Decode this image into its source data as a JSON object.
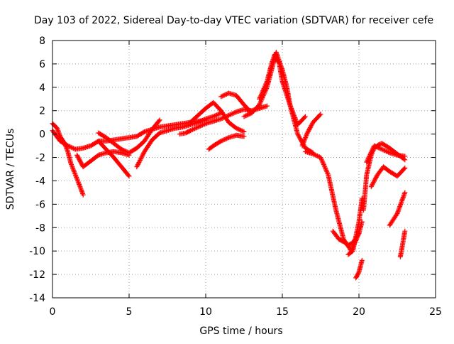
{
  "chart_data": {
    "type": "scatter",
    "title": "Day 103 of 2022, Sidereal Day-to-day VTEC variation (SDTVAR) for receiver cefe",
    "xlabel": "GPS time / hours",
    "ylabel": "SDTVAR / TECUs",
    "xlim": [
      0,
      25
    ],
    "ylim": [
      -14,
      8
    ],
    "xticks": [
      0,
      5,
      10,
      15,
      20,
      25
    ],
    "yticks": [
      -14,
      -12,
      -10,
      -8,
      -6,
      -4,
      -2,
      0,
      2,
      4,
      6,
      8
    ],
    "grid": true,
    "marker": "+",
    "marker_color": "#ff0000",
    "series": [
      {
        "name": "trace-1",
        "x": [
          0.0,
          0.3,
          0.5,
          0.8,
          1.0,
          1.2,
          1.5,
          1.8,
          2.0
        ],
        "y": [
          0.9,
          0.5,
          -0.2,
          -0.8,
          -1.5,
          -2.5,
          -3.5,
          -4.5,
          -5.2
        ]
      },
      {
        "name": "trace-2",
        "x": [
          0.0,
          0.5,
          1.0,
          1.5,
          2.0,
          2.5,
          3.0,
          3.5,
          4.0,
          4.5,
          5.0,
          5.5,
          6.0,
          6.5,
          7.0,
          7.5,
          8.0,
          8.5,
          9.0,
          9.5,
          10.0
        ],
        "y": [
          0.3,
          -0.6,
          -1.0,
          -1.3,
          -1.2,
          -1.0,
          -0.6,
          -0.6,
          -0.5,
          -0.4,
          -0.3,
          -0.2,
          0.2,
          0.4,
          0.6,
          0.7,
          0.8,
          0.9,
          1.0,
          1.1,
          1.2
        ]
      },
      {
        "name": "trace-3",
        "x": [
          1.6,
          2.0,
          2.5,
          3.0,
          3.5,
          4.0,
          4.5,
          5.0
        ],
        "y": [
          -1.8,
          -2.8,
          -2.3,
          -1.8,
          -1.6,
          -1.5,
          -1.6,
          -1.8
        ]
      },
      {
        "name": "trace-4",
        "x": [
          3.0,
          3.5,
          4.0,
          4.5,
          5.0
        ],
        "y": [
          -0.6,
          -1.3,
          -2.0,
          -2.8,
          -3.6
        ]
      },
      {
        "name": "trace-5",
        "x": [
          3.0,
          3.5,
          4.0,
          4.5,
          5.0,
          5.5,
          6.0,
          6.5,
          7.0
        ],
        "y": [
          0.1,
          -0.3,
          -0.8,
          -1.3,
          -1.6,
          -1.2,
          -0.6,
          0.4,
          1.2
        ]
      },
      {
        "name": "trace-6",
        "x": [
          5.5,
          6.0,
          6.5,
          7.0,
          7.5,
          8.0,
          8.5,
          9.0,
          9.5,
          10.0,
          10.5,
          11.0
        ],
        "y": [
          -2.8,
          -1.5,
          -0.5,
          0.1,
          0.3,
          0.5,
          0.6,
          0.8,
          1.0,
          1.3,
          1.5,
          1.8
        ]
      },
      {
        "name": "trace-7",
        "x": [
          8.3,
          8.7,
          9.0,
          9.5,
          10.0,
          10.5,
          11.0,
          11.5,
          12.0,
          12.5,
          13.0,
          13.5,
          14.0
        ],
        "y": [
          0.0,
          0.1,
          0.3,
          0.6,
          0.9,
          1.1,
          1.3,
          1.6,
          1.9,
          2.1,
          2.0,
          2.2,
          2.4
        ]
      },
      {
        "name": "trace-8",
        "x": [
          9.0,
          9.5,
          10.0,
          10.5,
          11.0,
          11.5,
          12.0,
          12.5
        ],
        "y": [
          1.0,
          1.6,
          2.2,
          2.7,
          2.0,
          1.0,
          0.5,
          0.2
        ]
      },
      {
        "name": "trace-9",
        "x": [
          10.2,
          10.5,
          11.0,
          11.5,
          12.0,
          12.5
        ],
        "y": [
          -1.3,
          -1.0,
          -0.6,
          -0.3,
          -0.1,
          -0.2
        ]
      },
      {
        "name": "trace-10",
        "x": [
          11.0,
          11.5,
          12.0,
          12.5,
          13.0
        ],
        "y": [
          3.2,
          3.5,
          3.3,
          2.5,
          1.8
        ]
      },
      {
        "name": "trace-11",
        "x": [
          12.5,
          13.0,
          13.5,
          14.0,
          14.3,
          14.6,
          15.0,
          15.3,
          15.5,
          16.0,
          16.5,
          17.0
        ],
        "y": [
          1.5,
          1.8,
          2.5,
          4.0,
          5.5,
          7.0,
          5.5,
          4.0,
          2.5,
          0.0,
          -1.2,
          -1.6
        ]
      },
      {
        "name": "trace-12",
        "x": [
          13.5,
          14.0,
          14.3,
          14.5,
          14.8,
          15.0,
          15.5,
          16.0,
          16.5
        ],
        "y": [
          3.0,
          4.5,
          6.0,
          6.8,
          6.0,
          4.5,
          2.5,
          0.8,
          1.5
        ]
      },
      {
        "name": "trace-13",
        "x": [
          16.3,
          16.6,
          17.0,
          17.5
        ],
        "y": [
          -1.0,
          0.0,
          1.0,
          1.7
        ]
      },
      {
        "name": "trace-14",
        "x": [
          16.5,
          17.0,
          17.5,
          18.0,
          18.5,
          19.0,
          19.5,
          20.0
        ],
        "y": [
          -1.5,
          -1.7,
          -2.0,
          -3.5,
          -6.5,
          -9.0,
          -10.0,
          -8.5
        ]
      },
      {
        "name": "trace-15",
        "x": [
          18.3,
          18.7,
          19.0,
          19.3,
          19.6,
          20.0,
          20.2
        ],
        "y": [
          -8.3,
          -9.0,
          -9.2,
          -9.5,
          -9.3,
          -8.5,
          -7.5
        ]
      },
      {
        "name": "trace-16",
        "x": [
          19.3,
          19.6,
          20.0,
          20.2
        ],
        "y": [
          -10.3,
          -10.0,
          -7.5,
          -5.5
        ]
      },
      {
        "name": "trace-17",
        "x": [
          19.8,
          20.0,
          20.2
        ],
        "y": [
          -12.3,
          -11.8,
          -10.8
        ]
      },
      {
        "name": "trace-18",
        "x": [
          20.3,
          20.5,
          20.8,
          21.0,
          21.3,
          21.5,
          22.0,
          22.5,
          23.0
        ],
        "y": [
          -6.5,
          -3.5,
          -1.8,
          -1.2,
          -0.9,
          -0.8,
          -1.2,
          -1.7,
          -2.2
        ]
      },
      {
        "name": "trace-19",
        "x": [
          20.5,
          21.0,
          21.5,
          22.0,
          22.5,
          23.0
        ],
        "y": [
          -2.4,
          -1.0,
          -1.3,
          -1.6,
          -1.8,
          -1.9
        ]
      },
      {
        "name": "trace-20",
        "x": [
          20.8,
          21.2,
          21.6,
          22.0,
          22.5,
          23.0
        ],
        "y": [
          -4.5,
          -3.5,
          -2.8,
          -3.2,
          -3.6,
          -2.9
        ]
      },
      {
        "name": "trace-21",
        "x": [
          22.0,
          22.5,
          23.0
        ],
        "y": [
          -7.8,
          -6.8,
          -5.0
        ]
      },
      {
        "name": "trace-22",
        "x": [
          22.7,
          22.8,
          23.0
        ],
        "y": [
          -10.5,
          -9.8,
          -8.3
        ]
      }
    ]
  }
}
